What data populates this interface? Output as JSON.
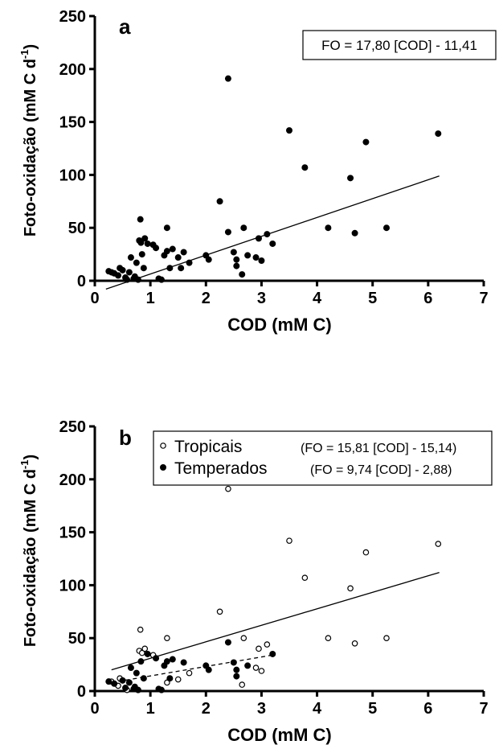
{
  "chart_data": [
    {
      "panel": "a",
      "type": "scatter",
      "xlabel": "COD (mM C)",
      "ylabel": "Foto-oxidação (mM C d",
      "ylabel_sup": "-1",
      "ylabel_close": ")",
      "xlim": [
        0,
        7
      ],
      "ylim": [
        0,
        250
      ],
      "x_ticks": [
        0,
        1,
        2,
        3,
        4,
        5,
        6,
        7
      ],
      "y_ticks": [
        0,
        50,
        100,
        150,
        200,
        250
      ],
      "equation": "FO = 17,80 [COD] - 11,41",
      "legend": "none",
      "series": [
        {
          "marker": "filled",
          "points": [
            [
              0.25,
              9
            ],
            [
              0.3,
              8
            ],
            [
              0.35,
              7
            ],
            [
              0.42,
              5
            ],
            [
              0.45,
              12
            ],
            [
              0.5,
              10
            ],
            [
              0.55,
              3
            ],
            [
              0.58,
              1
            ],
            [
              0.62,
              8
            ],
            [
              0.65,
              22
            ],
            [
              0.7,
              2
            ],
            [
              0.72,
              4
            ],
            [
              0.75,
              17
            ],
            [
              0.78,
              1
            ],
            [
              0.8,
              38
            ],
            [
              0.82,
              58
            ],
            [
              0.83,
              36
            ],
            [
              0.85,
              25
            ],
            [
              0.88,
              12
            ],
            [
              0.9,
              40
            ],
            [
              0.95,
              35
            ],
            [
              1.05,
              34
            ],
            [
              1.1,
              31
            ],
            [
              1.15,
              2
            ],
            [
              1.2,
              1
            ],
            [
              1.25,
              24
            ],
            [
              1.3,
              50
            ],
            [
              1.3,
              28
            ],
            [
              1.35,
              12
            ],
            [
              1.4,
              30
            ],
            [
              1.5,
              22
            ],
            [
              1.55,
              12
            ],
            [
              1.6,
              27
            ],
            [
              1.7,
              17
            ],
            [
              2.0,
              24
            ],
            [
              2.05,
              20
            ],
            [
              2.25,
              75
            ],
            [
              2.4,
              191
            ],
            [
              2.4,
              46
            ],
            [
              2.5,
              27
            ],
            [
              2.55,
              14
            ],
            [
              2.55,
              20
            ],
            [
              2.65,
              6
            ],
            [
              2.68,
              50
            ],
            [
              2.75,
              24
            ],
            [
              2.9,
              22
            ],
            [
              2.95,
              40
            ],
            [
              3.0,
              19
            ],
            [
              3.1,
              44
            ],
            [
              3.2,
              35
            ],
            [
              3.5,
              142
            ],
            [
              3.78,
              107
            ],
            [
              4.2,
              50
            ],
            [
              4.6,
              97
            ],
            [
              4.68,
              45
            ],
            [
              4.88,
              131
            ],
            [
              5.25,
              50
            ],
            [
              6.18,
              139
            ]
          ]
        }
      ],
      "fit_lines": [
        {
          "style": "solid",
          "x": [
            0.2,
            6.2
          ],
          "y": [
            -7.85,
            98.95
          ]
        }
      ]
    },
    {
      "panel": "b",
      "type": "scatter",
      "xlabel": "COD (mM C)",
      "ylabel": "Foto-oxidação (mM C d",
      "ylabel_sup": "-1",
      "ylabel_close": ")",
      "xlim": [
        0,
        7
      ],
      "ylim": [
        0,
        250
      ],
      "x_ticks": [
        0,
        1,
        2,
        3,
        4,
        5,
        6,
        7
      ],
      "y_ticks": [
        0,
        50,
        100,
        150,
        200,
        250
      ],
      "legend": "top-left",
      "series": [
        {
          "name": "Tropicais",
          "equation": "(FO = 15,81 [COD] - 15,14)",
          "marker": "open",
          "points": [
            [
              0.3,
              9
            ],
            [
              0.42,
              5
            ],
            [
              0.45,
              12
            ],
            [
              0.58,
              1
            ],
            [
              0.8,
              38
            ],
            [
              0.82,
              58
            ],
            [
              0.85,
              36
            ],
            [
              0.9,
              40
            ],
            [
              1.05,
              34
            ],
            [
              1.3,
              50
            ],
            [
              1.3,
              8
            ],
            [
              1.5,
              11
            ],
            [
              1.7,
              17
            ],
            [
              2.25,
              75
            ],
            [
              2.4,
              191
            ],
            [
              2.65,
              6
            ],
            [
              2.68,
              50
            ],
            [
              2.9,
              22
            ],
            [
              2.95,
              40
            ],
            [
              3.0,
              19
            ],
            [
              3.1,
              44
            ],
            [
              3.5,
              142
            ],
            [
              3.78,
              107
            ],
            [
              4.2,
              50
            ],
            [
              4.6,
              97
            ],
            [
              4.68,
              45
            ],
            [
              4.88,
              131
            ],
            [
              5.25,
              50
            ],
            [
              6.18,
              139
            ]
          ]
        },
        {
          "name": "Temperados",
          "equation": "(FO = 9,74 [COD] - 2,88)",
          "marker": "filled",
          "points": [
            [
              0.25,
              9
            ],
            [
              0.35,
              7
            ],
            [
              0.5,
              10
            ],
            [
              0.55,
              3
            ],
            [
              0.62,
              8
            ],
            [
              0.65,
              22
            ],
            [
              0.7,
              2
            ],
            [
              0.72,
              4
            ],
            [
              0.75,
              17
            ],
            [
              0.78,
              1
            ],
            [
              0.83,
              28
            ],
            [
              0.88,
              12
            ],
            [
              0.95,
              35
            ],
            [
              1.1,
              31
            ],
            [
              1.15,
              2
            ],
            [
              1.2,
              1
            ],
            [
              1.25,
              24
            ],
            [
              1.3,
              28
            ],
            [
              1.35,
              12
            ],
            [
              1.4,
              30
            ],
            [
              1.6,
              27
            ],
            [
              2.0,
              24
            ],
            [
              2.05,
              20
            ],
            [
              2.4,
              46
            ],
            [
              2.5,
              27
            ],
            [
              2.55,
              14
            ],
            [
              2.55,
              20
            ],
            [
              2.75,
              24
            ],
            [
              3.2,
              35
            ]
          ]
        }
      ],
      "fit_lines": [
        {
          "style": "solid",
          "x": [
            0.3,
            6.2
          ],
          "y": [
            20,
            112
          ]
        },
        {
          "style": "dashed",
          "x": [
            0.3,
            3.2
          ],
          "y": [
            8,
            34
          ]
        }
      ]
    }
  ]
}
